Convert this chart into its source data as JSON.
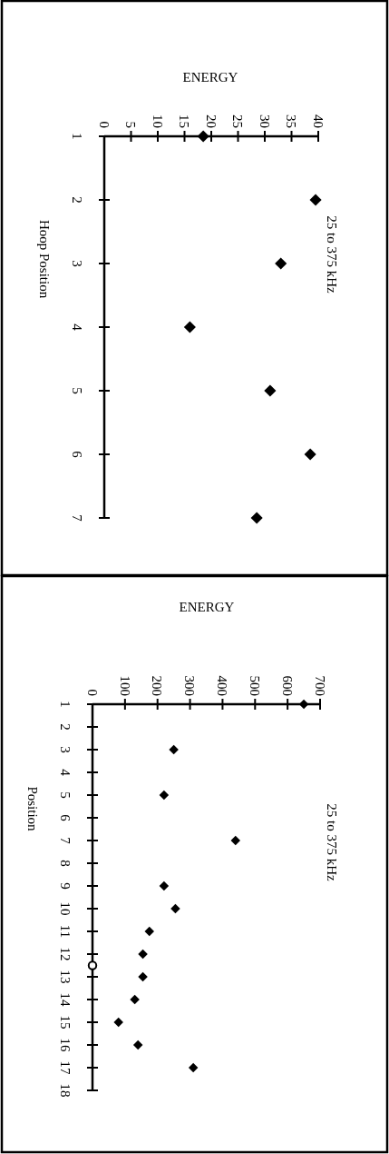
{
  "chart_data": [
    {
      "type": "scatter",
      "title": "25 to 375 kHz",
      "xlabel": "ENERGY",
      "ylabel": "Hoop Position",
      "xlim": [
        0,
        40
      ],
      "ylim": [
        7,
        1
      ],
      "xticks": [
        0,
        5,
        10,
        15,
        20,
        25,
        30,
        35,
        40
      ],
      "yticks": [
        1,
        2,
        3,
        4,
        5,
        6,
        7
      ],
      "grid": false,
      "marker": "diamond",
      "series": [
        {
          "color": "#000000",
          "x": [
            18.5,
            39.5,
            33,
            16,
            31,
            38.5,
            28.5
          ],
          "values": [
            1,
            2,
            3,
            4,
            5,
            6,
            7
          ]
        }
      ]
    },
    {
      "type": "scatter",
      "title": "25 to 375 kHz",
      "xlabel": "ENERGY",
      "ylabel": "Position",
      "xlim": [
        0,
        700
      ],
      "ylim": [
        18,
        1
      ],
      "xticks": [
        0,
        100,
        200,
        300,
        400,
        500,
        600,
        700
      ],
      "yticks": [
        1,
        2,
        3,
        4,
        5,
        6,
        7,
        8,
        9,
        10,
        11,
        12,
        13,
        14,
        15,
        16,
        17,
        18
      ],
      "grid": false,
      "marker": "diamond",
      "series": [
        {
          "color": "#000000",
          "x": [
            650,
            250,
            220,
            440,
            220,
            255,
            175,
            155,
            155,
            130,
            80,
            140,
            310
          ],
          "values": [
            1,
            3,
            5,
            7,
            9,
            10,
            11,
            12,
            13,
            14,
            15,
            16,
            17
          ]
        },
        {
          "color": "#000000",
          "marker": "circle",
          "x": [
            0
          ],
          "values": [
            12.5
          ]
        }
      ]
    }
  ]
}
